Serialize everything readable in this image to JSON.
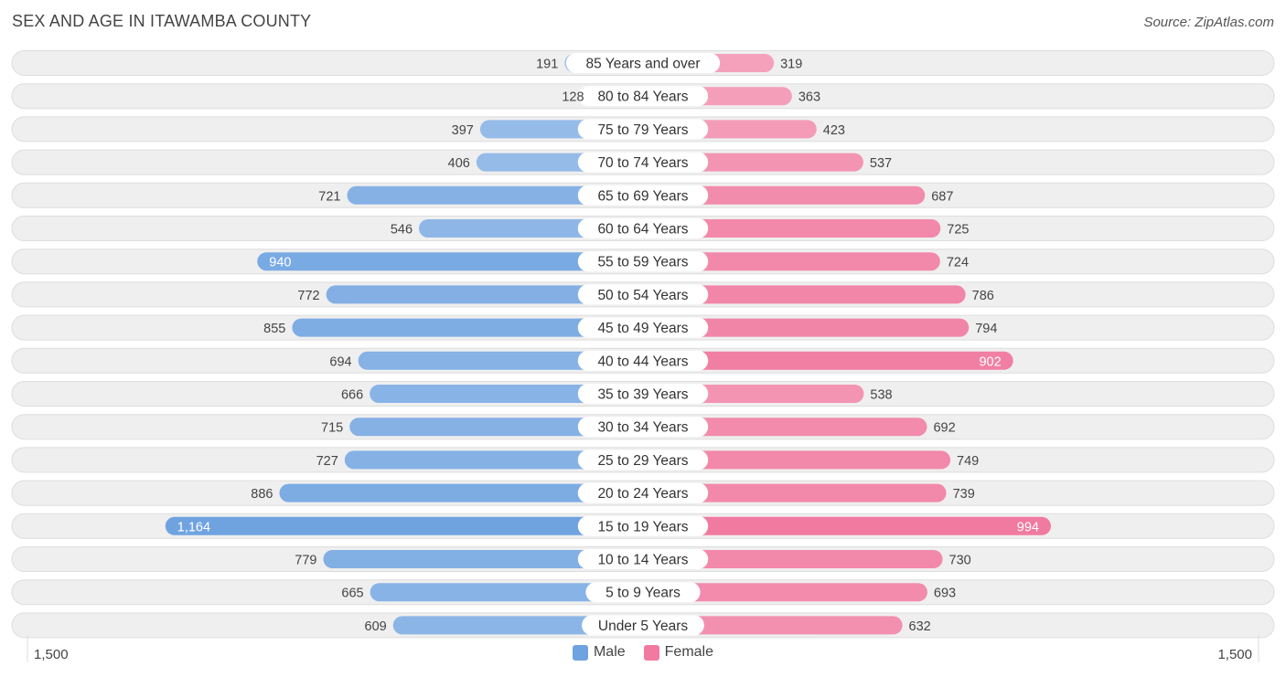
{
  "header": {
    "title": "SEX AND AGE IN ITAWAMBA COUNTY",
    "source": "Source: ZipAtlas.com"
  },
  "legend": {
    "male_label": "Male",
    "female_label": "Female"
  },
  "axis": {
    "left_label": "1,500",
    "right_label": "1,500"
  },
  "colors": {
    "male": "#6fa3e0",
    "male_light": "#a9c8ed",
    "female": "#f07aa0",
    "female_light": "#f7b3c8",
    "row_bg": "#efefef"
  },
  "chart_data": {
    "type": "bar",
    "orientation": "horizontal-diverging",
    "max": 1500,
    "categories": [
      "85 Years and over",
      "80 to 84 Years",
      "75 to 79 Years",
      "70 to 74 Years",
      "65 to 69 Years",
      "60 to 64 Years",
      "55 to 59 Years",
      "50 to 54 Years",
      "45 to 49 Years",
      "40 to 44 Years",
      "35 to 39 Years",
      "30 to 34 Years",
      "25 to 29 Years",
      "20 to 24 Years",
      "15 to 19 Years",
      "10 to 14 Years",
      "5 to 9 Years",
      "Under 5 Years"
    ],
    "series": [
      {
        "name": "Male",
        "values": [
          191,
          128,
          397,
          406,
          721,
          546,
          940,
          772,
          855,
          694,
          666,
          715,
          727,
          886,
          1164,
          779,
          665,
          609
        ]
      },
      {
        "name": "Female",
        "values": [
          319,
          363,
          423,
          537,
          687,
          725,
          724,
          786,
          794,
          902,
          538,
          692,
          749,
          739,
          994,
          730,
          693,
          632
        ]
      }
    ],
    "value_labels": {
      "Male": [
        "191",
        "128",
        "397",
        "406",
        "721",
        "546",
        "940",
        "772",
        "855",
        "694",
        "666",
        "715",
        "727",
        "886",
        "1,164",
        "779",
        "665",
        "609"
      ],
      "Female": [
        "319",
        "363",
        "423",
        "537",
        "687",
        "725",
        "724",
        "786",
        "794",
        "902",
        "538",
        "692",
        "749",
        "739",
        "994",
        "730",
        "693",
        "632"
      ]
    },
    "xlim": [
      -1500,
      1500
    ],
    "legend_position": "bottom-center"
  }
}
